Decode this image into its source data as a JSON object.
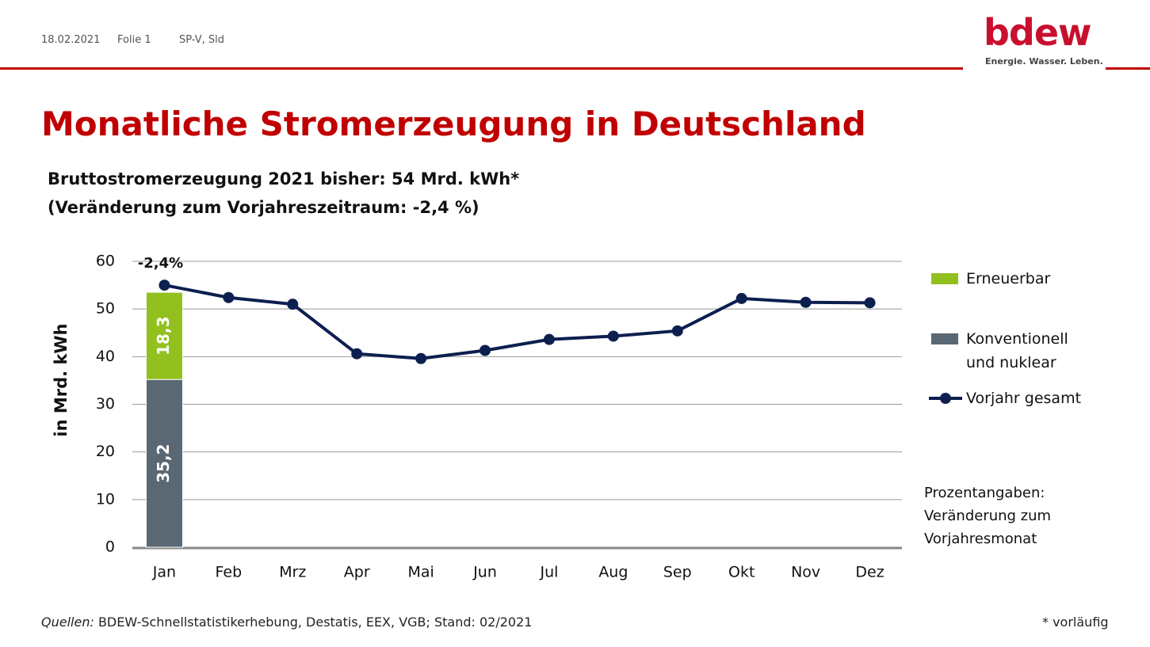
{
  "header": {
    "date": "18.02.2021",
    "slide": "Folie 1",
    "author": "SP-V, Sld"
  },
  "logo": {
    "name": "bdew",
    "tagline": "Energie. Wasser. Leben."
  },
  "title": "Monatliche Stromerzeugung in Deutschland",
  "subtitle": [
    "Bruttostromerzeugung 2021 bisher: 54 Mrd. kWh*",
    "(Veränderung zum Vorjahreszeitraum: -2,4 %)"
  ],
  "chart_data": {
    "type": "bar",
    "stacked": true,
    "y_label": "in Mrd. kWh",
    "categories": [
      "Jan",
      "Feb",
      "Mrz",
      "Apr",
      "Mai",
      "Jun",
      "Jul",
      "Aug",
      "Sep",
      "Okt",
      "Nov",
      "Dez"
    ],
    "ylim": [
      0,
      60
    ],
    "yticks": [
      0,
      10,
      20,
      30,
      40,
      50,
      60
    ],
    "grid": true,
    "series": [
      {
        "name": "Konventionell\nund nuklear",
        "type": "bar",
        "color": "#5a6874",
        "values": [
          35.2,
          null,
          null,
          null,
          null,
          null,
          null,
          null,
          null,
          null,
          null,
          null
        ],
        "value_labels": [
          "35,2",
          null,
          null,
          null,
          null,
          null,
          null,
          null,
          null,
          null,
          null,
          null
        ]
      },
      {
        "name": "Erneuerbar",
        "type": "bar",
        "color": "#92c01f",
        "values": [
          18.3,
          null,
          null,
          null,
          null,
          null,
          null,
          null,
          null,
          null,
          null,
          null
        ],
        "value_labels": [
          "18,3",
          null,
          null,
          null,
          null,
          null,
          null,
          null,
          null,
          null,
          null,
          null
        ]
      },
      {
        "name": "Vorjahr gesamt",
        "type": "line",
        "color": "#0d1f4f",
        "values": [
          55.0,
          52.4,
          51.0,
          40.6,
          39.6,
          41.3,
          43.6,
          44.3,
          45.4,
          52.2,
          51.4,
          51.3
        ]
      }
    ],
    "annotation": "-2,4%",
    "note": "Prozentangaben:\nVeränderung zum\nVorjahresmonat"
  },
  "footer": {
    "source_label": "Quellen:",
    "source": "BDEW-Schnellstatistikerhebung, Destatis, EEX, VGB; Stand: 02/2021",
    "remark": "* vorläufig"
  }
}
